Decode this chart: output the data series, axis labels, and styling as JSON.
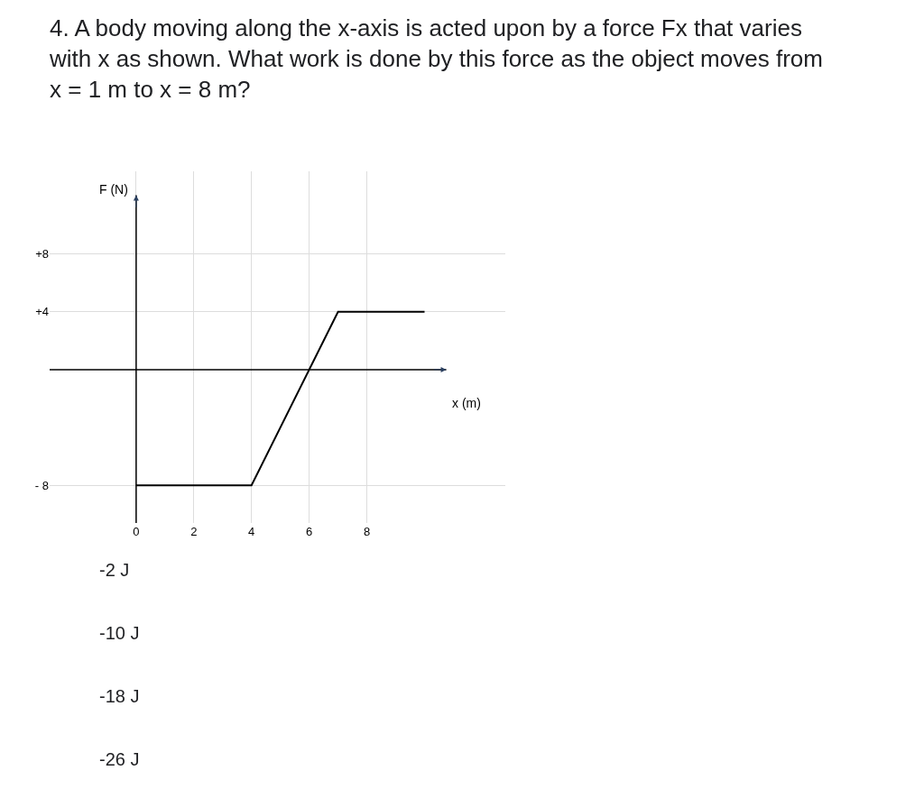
{
  "chart_data": {
    "type": "line",
    "title": "4. A body moving along the x-axis is acted upon by a force Fx that varies with x as shown. What work is done by this force as the object moves from x = 1 m to x = 8 m?",
    "xlabel": "x (m)",
    "ylabel": "F (N)",
    "x": [
      0,
      4,
      7,
      10
    ],
    "series": [
      {
        "color": "#000000",
        "values": [
          -8,
          -8,
          4,
          4
        ]
      }
    ],
    "xlim": [
      -3,
      12.8
    ],
    "ylim": [
      -10.6,
      13.7
    ],
    "xticks": [
      0,
      2,
      4,
      6,
      8
    ],
    "yticks": [
      {
        "value": 8,
        "label": "+8"
      },
      {
        "value": 4,
        "label": "+4"
      },
      {
        "value": -8,
        "label": "- 8"
      }
    ],
    "grid": true,
    "marker": "none",
    "line_style": "solid",
    "annotations": [
      "-2 J",
      "-10 J",
      "-18 J",
      "-26 J"
    ]
  }
}
